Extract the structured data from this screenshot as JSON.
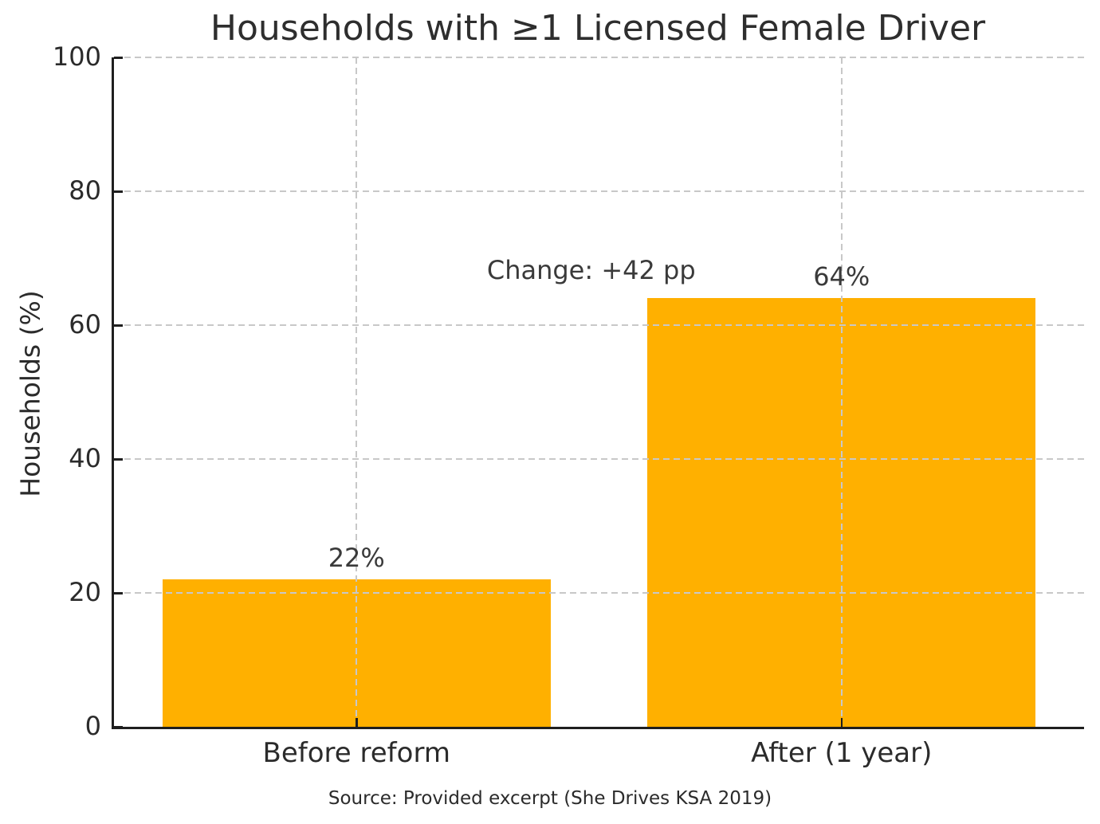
{
  "figure": {
    "source": "Source: Provided excerpt (She Drives KSA 2019)"
  },
  "chart_data": {
    "type": "bar",
    "title": "Households with ≥1 Licensed Female Driver",
    "categories": [
      "Before reform",
      "After (1 year)"
    ],
    "values": [
      22,
      64
    ],
    "bar_labels": [
      "22%",
      "64%"
    ],
    "xlabel": "",
    "ylabel": "Households (%)",
    "ylim": [
      0,
      100
    ],
    "yticks": [
      0,
      20,
      40,
      60,
      80,
      100
    ],
    "grid": "dashed gridlines on both axes, drawn over bars",
    "legend": "none",
    "bar_color": "#FFB000",
    "bar_width_frac": 0.8,
    "annotation": {
      "text": "Change: +42 pp",
      "x_frac": 0.492,
      "y_value": 68.2
    }
  },
  "colors": {
    "bar": "#FFB000",
    "grid": "#c8c8c8",
    "spine": "#1f1f1f",
    "text": "#2b2b2b"
  }
}
